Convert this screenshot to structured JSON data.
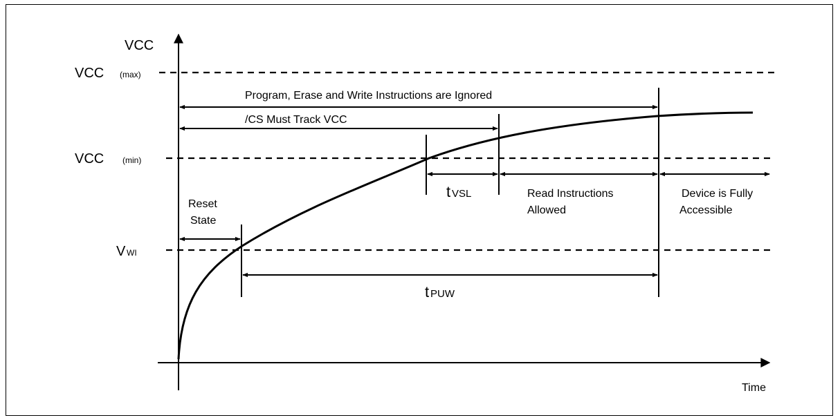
{
  "axes": {
    "y_label": "VCC",
    "x_label": "Time"
  },
  "levels": {
    "vcc_max": {
      "main": "VCC",
      "sub": "(max)"
    },
    "vcc_min": {
      "main": "VCC",
      "sub": "(min)"
    },
    "vwi": {
      "main": "V",
      "sub": "WI"
    }
  },
  "spans": {
    "ignored": "Program, Erase and Write Instructions are Ignored",
    "cs_track": "/CS Must Track VCC",
    "reset_state": [
      "Reset",
      "State"
    ],
    "tvsl": {
      "main": "t",
      "sub": "VSL"
    },
    "read_allowed": [
      "Read Instructions",
      "Allowed"
    ],
    "fully_accessible": [
      "Device is Fully",
      "Accessible"
    ],
    "tpuw": {
      "main": "t",
      "sub": "PUW"
    }
  }
}
